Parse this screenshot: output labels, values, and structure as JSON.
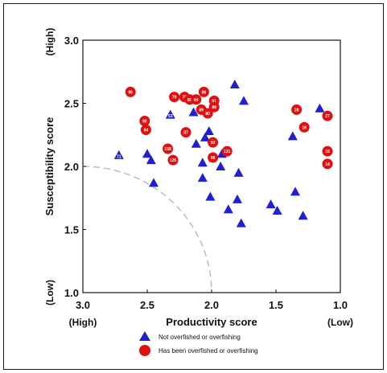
{
  "chart_data": {
    "type": "scatter",
    "xlabel": "Productivity score",
    "ylabel": "Susceptibility score",
    "xlim": [
      3.0,
      1.0
    ],
    "ylim": [
      1.0,
      3.0
    ],
    "x_reversed": true,
    "x_ticks": [
      "3.0",
      "2.5",
      "2.0",
      "1.5",
      "1.0"
    ],
    "y_ticks": [
      "1.0",
      "1.5",
      "2.0",
      "2.5",
      "3.0"
    ],
    "x_low_label": "(Low)",
    "x_high_label": "(High)",
    "y_low_label": "(Low)",
    "y_high_label": "(High)",
    "grid": false,
    "legend_position": "bottom",
    "threshold_arc": {
      "center": [
        3.0,
        1.0
      ],
      "radius": 1.0,
      "style": "dashed",
      "color": "#bbbbbb"
    },
    "series": [
      {
        "name": "Not overfished or overfishing",
        "marker": "triangle",
        "color": "#1f1fd6",
        "points": [
          {
            "x": 2.72,
            "y": 2.09,
            "label": "71"
          },
          {
            "x": 2.5,
            "y": 2.1,
            "label": ""
          },
          {
            "x": 2.47,
            "y": 2.05,
            "label": ""
          },
          {
            "x": 2.45,
            "y": 1.87,
            "label": ""
          },
          {
            "x": 2.32,
            "y": 2.41,
            "label": "53"
          },
          {
            "x": 2.14,
            "y": 2.43,
            "label": ""
          },
          {
            "x": 2.12,
            "y": 2.18,
            "label": ""
          },
          {
            "x": 2.07,
            "y": 2.03,
            "label": ""
          },
          {
            "x": 2.07,
            "y": 1.91,
            "label": ""
          },
          {
            "x": 2.05,
            "y": 2.23,
            "label": ""
          },
          {
            "x": 2.02,
            "y": 2.28,
            "label": ""
          },
          {
            "x": 2.01,
            "y": 1.76,
            "label": ""
          },
          {
            "x": 1.93,
            "y": 2.0,
            "label": ""
          },
          {
            "x": 1.92,
            "y": 2.1,
            "label": ""
          },
          {
            "x": 1.87,
            "y": 1.66,
            "label": ""
          },
          {
            "x": 1.82,
            "y": 2.65,
            "label": ""
          },
          {
            "x": 1.8,
            "y": 1.74,
            "label": ""
          },
          {
            "x": 1.79,
            "y": 1.95,
            "label": ""
          },
          {
            "x": 1.77,
            "y": 1.55,
            "label": ""
          },
          {
            "x": 1.75,
            "y": 2.52,
            "label": ""
          },
          {
            "x": 1.54,
            "y": 1.7,
            "label": ""
          },
          {
            "x": 1.49,
            "y": 1.65,
            "label": ""
          },
          {
            "x": 1.37,
            "y": 2.24,
            "label": ""
          },
          {
            "x": 1.35,
            "y": 1.8,
            "label": ""
          },
          {
            "x": 1.29,
            "y": 1.61,
            "label": ""
          },
          {
            "x": 1.16,
            "y": 2.46,
            "label": ""
          }
        ]
      },
      {
        "name": "Has been overfished or overfishing",
        "marker": "circle",
        "color": "#e01010",
        "points": [
          {
            "x": 2.63,
            "y": 2.59,
            "label": "96"
          },
          {
            "x": 2.52,
            "y": 2.36,
            "label": "90"
          },
          {
            "x": 2.51,
            "y": 2.29,
            "label": "94"
          },
          {
            "x": 2.34,
            "y": 2.14,
            "label": "158"
          },
          {
            "x": 2.3,
            "y": 2.05,
            "label": "125"
          },
          {
            "x": 2.29,
            "y": 2.55,
            "label": "79"
          },
          {
            "x": 2.21,
            "y": 2.55,
            "label": "78"
          },
          {
            "x": 2.2,
            "y": 2.27,
            "label": "87"
          },
          {
            "x": 2.17,
            "y": 2.53,
            "label": "85"
          },
          {
            "x": 2.12,
            "y": 2.53,
            "label": "64"
          },
          {
            "x": 2.06,
            "y": 2.59,
            "label": "86"
          },
          {
            "x": 2.08,
            "y": 2.45,
            "label": "89"
          },
          {
            "x": 2.03,
            "y": 2.42,
            "label": "80"
          },
          {
            "x": 1.98,
            "y": 2.52,
            "label": "81"
          },
          {
            "x": 1.98,
            "y": 2.47,
            "label": "88"
          },
          {
            "x": 1.99,
            "y": 2.19,
            "label": "93"
          },
          {
            "x": 1.99,
            "y": 2.07,
            "label": "98"
          },
          {
            "x": 1.88,
            "y": 2.12,
            "label": "131"
          },
          {
            "x": 1.34,
            "y": 2.45,
            "label": "28"
          },
          {
            "x": 1.28,
            "y": 2.31,
            "label": "18"
          },
          {
            "x": 1.1,
            "y": 2.4,
            "label": "27"
          },
          {
            "x": 1.1,
            "y": 2.12,
            "label": "15"
          },
          {
            "x": 1.1,
            "y": 2.02,
            "label": "14"
          }
        ]
      }
    ]
  }
}
